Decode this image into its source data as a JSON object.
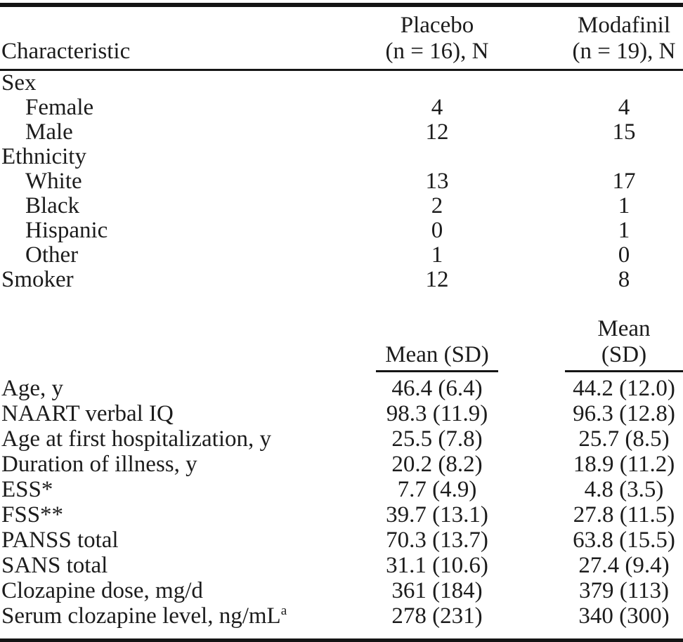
{
  "table": {
    "columns": {
      "characteristic": "Characteristic",
      "placebo_line1": "Placebo",
      "placebo_line2": "(n = 16), N",
      "modafinil_line1": "Modafinil",
      "modafinil_line2": "(n = 19), N"
    },
    "count_rows": [
      {
        "label": "Sex",
        "indent": false,
        "section": true,
        "placebo": "",
        "modafinil": ""
      },
      {
        "label": "Female",
        "indent": true,
        "section": false,
        "placebo": "4",
        "modafinil": "4"
      },
      {
        "label": "Male",
        "indent": true,
        "section": false,
        "placebo": "12",
        "modafinil": "15"
      },
      {
        "label": "Ethnicity",
        "indent": false,
        "section": true,
        "placebo": "",
        "modafinil": ""
      },
      {
        "label": "White",
        "indent": true,
        "section": false,
        "placebo": "13",
        "modafinil": "17"
      },
      {
        "label": "Black",
        "indent": true,
        "section": false,
        "placebo": "2",
        "modafinil": "1"
      },
      {
        "label": "Hispanic",
        "indent": true,
        "section": false,
        "placebo": "0",
        "modafinil": "1"
      },
      {
        "label": "Other",
        "indent": true,
        "section": false,
        "placebo": "1",
        "modafinil": "0"
      },
      {
        "label": "Smoker",
        "indent": false,
        "section": false,
        "placebo": "12",
        "modafinil": "8"
      }
    ],
    "subheader": {
      "placebo": "Mean (SD)",
      "modafinil": "Mean (SD)"
    },
    "mean_rows": [
      {
        "label": "Age, y",
        "placebo": "46.4 (6.4)",
        "modafinil": "44.2 (12.0)"
      },
      {
        "label": "NAART verbal IQ",
        "placebo": "98.3 (11.9)",
        "modafinil": "96.3 (12.8)"
      },
      {
        "label": "Age at first hospitalization, y",
        "placebo": "25.5 (7.8)",
        "modafinil": "25.7 (8.5)"
      },
      {
        "label": "Duration of illness, y",
        "placebo": "20.2 (8.2)",
        "modafinil": "18.9 (11.2)"
      },
      {
        "label": "ESS*",
        "placebo": "7.7 (4.9)",
        "modafinil": "4.8 (3.5)"
      },
      {
        "label": "FSS**",
        "placebo": "39.7 (13.1)",
        "modafinil": "27.8 (11.5)"
      },
      {
        "label": "PANSS total",
        "placebo": "70.3 (13.7)",
        "modafinil": "63.8 (15.5)"
      },
      {
        "label": "SANS total",
        "placebo": "31.1 (10.6)",
        "modafinil": "27.4 (9.4)"
      },
      {
        "label": "Clozapine dose, mg/d",
        "placebo": "361 (184)",
        "modafinil": "379 (113)"
      },
      {
        "label": "Serum clozapine level, ng/mL",
        "label_sup": "a",
        "placebo": "278 (231)",
        "modafinil": "340 (300)"
      }
    ]
  }
}
